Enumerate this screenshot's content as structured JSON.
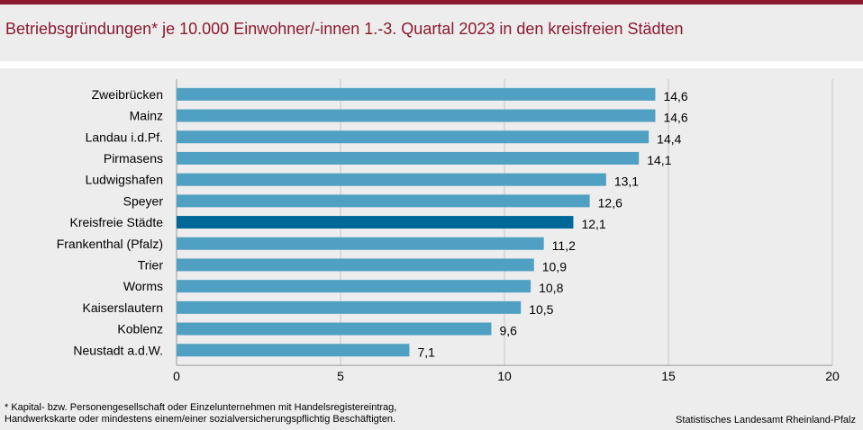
{
  "title": "Betriebsgründungen* je 10.000 Einwohner/-innen 1.-3. Quartal 2023 in den kreisfreien Städten",
  "colors": {
    "bar": "#4fa0c2",
    "highlight": "#006898",
    "accent": "#8b1a2e"
  },
  "chart_data": {
    "type": "bar",
    "orientation": "horizontal",
    "categories": [
      "Zweibrücken",
      "Mainz",
      "Landau i.d.Pf.",
      "Pirmasens",
      "Ludwigshafen",
      "Speyer",
      "Kreisfreie Städte",
      "Frankenthal (Pfalz)",
      "Trier",
      "Worms",
      "Kaiserslautern",
      "Koblenz",
      "Neustadt a.d.W."
    ],
    "values": [
      14.6,
      14.6,
      14.4,
      14.1,
      13.1,
      12.6,
      12.1,
      11.2,
      10.9,
      10.8,
      10.5,
      9.6,
      7.1
    ],
    "value_labels": [
      "14,6",
      "14,6",
      "14,4",
      "14,1",
      "13,1",
      "12,6",
      "12,1",
      "11,2",
      "10,9",
      "10,8",
      "10,5",
      "9,6",
      "7,1"
    ],
    "highlight": "Kreisfreie Städte",
    "xlim": [
      0,
      20
    ],
    "xticks": [
      0,
      5,
      10,
      15,
      20
    ],
    "xtick_labels": [
      "0",
      "5",
      "10",
      "15",
      "20"
    ],
    "grid": true,
    "xlabel": "",
    "ylabel": ""
  },
  "footnote": {
    "line1": "* Kapital- bzw. Personengesellschaft  oder Einzelunternehmen  mit  Handelsregistereintrag,",
    "line2": "Handwerkskarte  oder mindestens  einem/einer  sozialversicherungspflichtig  Beschäftigten."
  },
  "source": "Statistisches Landesamt Rheinland-Pfalz"
}
